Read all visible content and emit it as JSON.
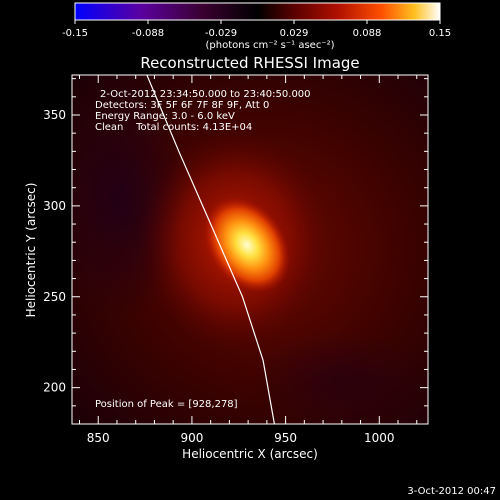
{
  "chart_data": {
    "type": "heatmap",
    "title": "Reconstructed RHESSI Image",
    "xlabel": "Heliocentric X (arcsec)",
    "ylabel": "Heliocentric Y (arcsec)",
    "xlim": [
      836,
      1026
    ],
    "ylim": [
      180,
      372
    ],
    "x_ticks": [
      850,
      900,
      950,
      1000
    ],
    "y_ticks": [
      200,
      250,
      300,
      350
    ],
    "colorbar": {
      "label": "(photons cm⁻² s⁻¹ asec⁻²)",
      "range": [
        -0.15,
        0.15
      ],
      "ticks": [
        "-0.15",
        "-0.088",
        "-0.029",
        "0.029",
        "0.088",
        "0.15"
      ],
      "colormap": [
        "#0000ff",
        "#5a00a0",
        "#3a0030",
        "#000000",
        "#5a0000",
        "#b01000",
        "#ff5000",
        "#ffc020",
        "#ffffa0",
        "#ffffff"
      ]
    },
    "annotations": [
      "2-Oct-2012 23:34:50.000 to 23:40:50.000",
      "Detectors: 3F 5F 6F 7F 8F 9F, Att 0",
      "Energy Range: 3.0 - 6.0 keV",
      "Clean    Total counts: 4.13E+04"
    ],
    "peak_label": "Position of Peak = [928,278]",
    "peak": {
      "x": 928,
      "y": 278,
      "value": 0.15
    },
    "limb_curve": {
      "x": [
        876,
        893,
        910,
        927,
        938,
        944
      ],
      "y": [
        372,
        330,
        290,
        250,
        215,
        180
      ]
    }
  },
  "footer": {
    "date_stamp": "3-Oct-2012 00:47"
  },
  "colors": {
    "background": "#000000",
    "frame": "#ffffff",
    "limb": "#ffffff"
  }
}
